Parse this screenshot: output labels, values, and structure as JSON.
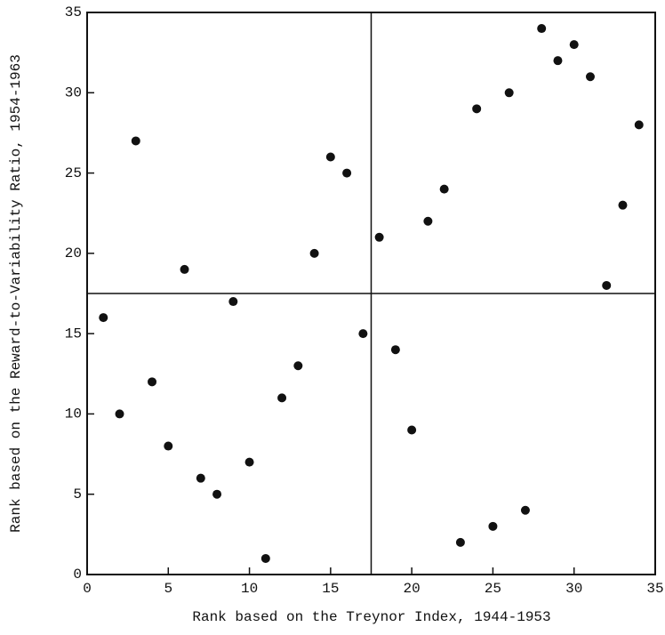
{
  "chart_data": {
    "type": "scatter",
    "x_label": "Rank based on the Treynor Index, 1944-1953",
    "y_label": "Rank based on the Reward-to-Variability Ratio, 1954-1963",
    "x": [
      1,
      2,
      3,
      4,
      5,
      6,
      7,
      8,
      9,
      10,
      11,
      12,
      13,
      14,
      15,
      16,
      17,
      18,
      19,
      20,
      21,
      22,
      23,
      24,
      25,
      26,
      27,
      28,
      29,
      30,
      31,
      32,
      33,
      34
    ],
    "values": [
      16,
      10,
      27,
      12,
      8,
      19,
      6,
      5,
      17,
      7,
      1,
      11,
      13,
      20,
      26,
      25,
      15,
      21,
      14,
      9,
      22,
      24,
      2,
      29,
      3,
      30,
      4,
      34,
      32,
      33,
      31,
      18,
      23,
      28
    ],
    "color": "#111111",
    "xlim": [
      0,
      35
    ],
    "ylim": [
      0,
      35
    ],
    "xticks": [
      0,
      5,
      10,
      15,
      20,
      25,
      30,
      35
    ],
    "yticks": [
      0,
      5,
      10,
      15,
      20,
      25,
      30,
      35
    ],
    "quadrant_lines": {
      "x": 17.5,
      "y": 17.5
    }
  }
}
